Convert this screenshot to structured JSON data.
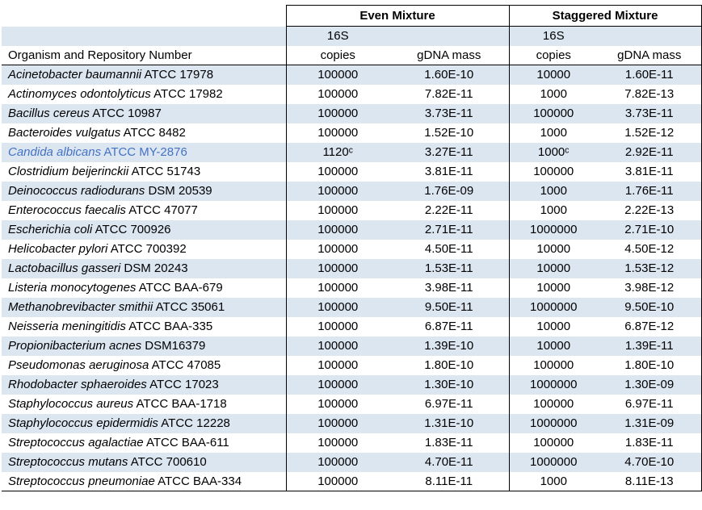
{
  "headers": {
    "even_group": "Even Mixture",
    "staggered_group": "Staggered Mixture",
    "organism_col": "Organism and Repository Number",
    "sub_16s": "16S",
    "sub_copies": "copies",
    "sub_gdna": "gDNA mass"
  },
  "colors": {
    "stripe": "#DCE6F1",
    "highlight_text": "#4472C4",
    "border": "#000000"
  },
  "rows": [
    {
      "name_italic": "Acinetobacter baumannii",
      "name_rest": "ATCC 17978",
      "even_copies": "100000",
      "even_mass": "1.60E-10",
      "stag_copies": "10000",
      "stag_mass": "1.60E-11",
      "highlight": false
    },
    {
      "name_italic": "Actinomyces odontolyticus",
      "name_rest": "ATCC 17982",
      "even_copies": "100000",
      "even_mass": "7.82E-11",
      "stag_copies": "1000",
      "stag_mass": "7.82E-13",
      "highlight": false
    },
    {
      "name_italic": "Bacillus cereus",
      "name_rest": "ATCC 10987",
      "even_copies": "100000",
      "even_mass": "3.73E-11",
      "stag_copies": "100000",
      "stag_mass": "3.73E-11",
      "highlight": false
    },
    {
      "name_italic": "Bacteroides vulgatus",
      "name_rest": "ATCC 8482",
      "even_copies": "100000",
      "even_mass": "1.52E-10",
      "stag_copies": "1000",
      "stag_mass": "1.52E-12",
      "highlight": false
    },
    {
      "name_italic": "Candida albicans",
      "name_rest": "ATCC MY-2876",
      "even_copies": "1120ᶜ",
      "even_mass": "3.27E-11",
      "stag_copies": "1000ᶜ",
      "stag_mass": "2.92E-11",
      "highlight": true
    },
    {
      "name_italic": "Clostridium beijerinckii",
      "name_rest": "ATCC 51743",
      "even_copies": "100000",
      "even_mass": "3.81E-11",
      "stag_copies": "100000",
      "stag_mass": "3.81E-11",
      "highlight": false
    },
    {
      "name_italic": "Deinococcus radiodurans",
      "name_rest": "DSM 20539",
      "even_copies": "100000",
      "even_mass": "1.76E-09",
      "stag_copies": "1000",
      "stag_mass": "1.76E-11",
      "highlight": false
    },
    {
      "name_italic": "Enterococcus faecalis",
      "name_rest": "ATCC 47077",
      "even_copies": "100000",
      "even_mass": "2.22E-11",
      "stag_copies": "1000",
      "stag_mass": "2.22E-13",
      "highlight": false
    },
    {
      "name_italic": "Escherichia coli",
      "name_rest": "ATCC 700926",
      "even_copies": "100000",
      "even_mass": "2.71E-11",
      "stag_copies": "1000000",
      "stag_mass": "2.71E-10",
      "highlight": false
    },
    {
      "name_italic": "Helicobacter pylori",
      "name_rest": "ATCC 700392",
      "even_copies": "100000",
      "even_mass": "4.50E-11",
      "stag_copies": "10000",
      "stag_mass": "4.50E-12",
      "highlight": false
    },
    {
      "name_italic": "Lactobacillus gasseri",
      "name_rest": "DSM 20243",
      "even_copies": "100000",
      "even_mass": "1.53E-11",
      "stag_copies": "10000",
      "stag_mass": "1.53E-12",
      "highlight": false
    },
    {
      "name_italic": "Listeria monocytogenes",
      "name_rest": "ATCC BAA-679",
      "even_copies": "100000",
      "even_mass": "3.98E-11",
      "stag_copies": "10000",
      "stag_mass": "3.98E-12",
      "highlight": false
    },
    {
      "name_italic": "Methanobrevibacter smithii",
      "name_rest": "ATCC 35061",
      "even_copies": "100000",
      "even_mass": "9.50E-11",
      "stag_copies": "1000000",
      "stag_mass": "9.50E-10",
      "highlight": false
    },
    {
      "name_italic": "Neisseria meningitidis",
      "name_rest": "ATCC BAA-335",
      "even_copies": "100000",
      "even_mass": "6.87E-11",
      "stag_copies": "10000",
      "stag_mass": "6.87E-12",
      "highlight": false
    },
    {
      "name_italic": "Propionibacterium acnes",
      "name_rest": "DSM16379",
      "even_copies": "100000",
      "even_mass": "1.39E-10",
      "stag_copies": "10000",
      "stag_mass": "1.39E-11",
      "highlight": false
    },
    {
      "name_italic": "Pseudomonas aeruginosa",
      "name_rest": "ATCC 47085",
      "even_copies": "100000",
      "even_mass": "1.80E-10",
      "stag_copies": "100000",
      "stag_mass": "1.80E-10",
      "highlight": false
    },
    {
      "name_italic": "Rhodobacter sphaeroides",
      "name_rest": "ATCC 17023",
      "even_copies": "100000",
      "even_mass": "1.30E-10",
      "stag_copies": "1000000",
      "stag_mass": "1.30E-09",
      "highlight": false
    },
    {
      "name_italic": "Staphylococcus aureus",
      "name_rest": "ATCC BAA-1718",
      "even_copies": "100000",
      "even_mass": "6.97E-11",
      "stag_copies": "100000",
      "stag_mass": "6.97E-11",
      "highlight": false
    },
    {
      "name_italic": "Staphylococcus epidermidis",
      "name_rest": "ATCC 12228",
      "even_copies": "100000",
      "even_mass": "1.31E-10",
      "stag_copies": "1000000",
      "stag_mass": "1.31E-09",
      "highlight": false
    },
    {
      "name_italic": "Streptococcus agalactiae",
      "name_rest": "ATCC BAA-611",
      "even_copies": "100000",
      "even_mass": "1.83E-11",
      "stag_copies": "100000",
      "stag_mass": "1.83E-11",
      "highlight": false
    },
    {
      "name_italic": "Streptococcus mutans",
      "name_rest": "ATCC 700610",
      "even_copies": "100000",
      "even_mass": "4.70E-11",
      "stag_copies": "1000000",
      "stag_mass": "4.70E-10",
      "highlight": false
    },
    {
      "name_italic": "Streptococcus pneumoniae",
      "name_rest": "ATCC BAA-334",
      "even_copies": "100000",
      "even_mass": "8.11E-11",
      "stag_copies": "1000",
      "stag_mass": "8.11E-13",
      "highlight": false
    }
  ]
}
